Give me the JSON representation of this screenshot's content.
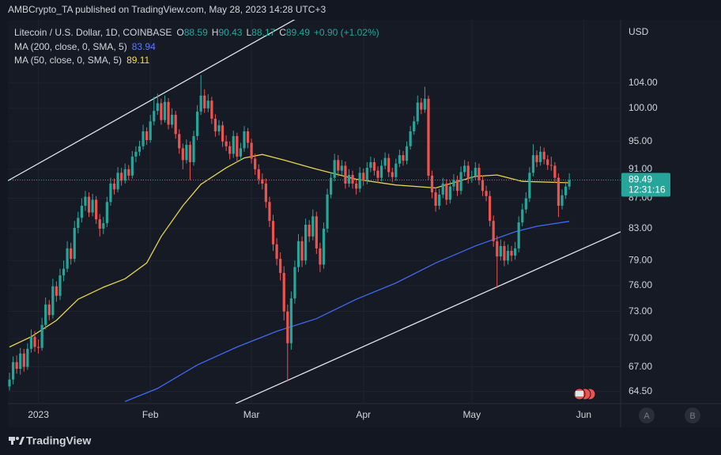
{
  "header": {
    "publisher": "AMBCrypto_TA published on TradingView.com, May 28, 2023 14:28 UTC+3"
  },
  "footer": {
    "brand": "TradingView",
    "buttons": [
      "A",
      "B"
    ]
  },
  "chart_data": {
    "type": "candlestick",
    "legend": {
      "symbol": "Litecoin / U.S. Dollar, 1D, COINBASE",
      "ohlc": [
        {
          "label": "O",
          "value": 88.59
        },
        {
          "label": "H",
          "value": 90.43
        },
        {
          "label": "L",
          "value": 88.17
        },
        {
          "label": "C",
          "value": 89.49
        }
      ],
      "change": "+0.90 (+1.02%)"
    },
    "currency": "USD",
    "countdown": "12:31:16",
    "log_scale": true,
    "grid": true,
    "up_color": "#26a69a",
    "down_color": "#ef5350",
    "ylim": [
      63.3,
      114.7
    ],
    "yticks": [
      {
        "value": 104,
        "label": "104.00"
      },
      {
        "value": 100,
        "label": "100.00"
      },
      {
        "value": 95,
        "label": "95.00"
      },
      {
        "value": 91,
        "label": "91.00"
      },
      {
        "value": 87,
        "label": "87.00"
      },
      {
        "value": 83,
        "label": "83.00"
      },
      {
        "value": 79,
        "label": "79.00"
      },
      {
        "value": 76,
        "label": "76.00"
      },
      {
        "value": 73,
        "label": "73.00"
      },
      {
        "value": 70,
        "label": "70.00"
      },
      {
        "value": 67,
        "label": "67.00"
      },
      {
        "value": 64.5,
        "label": "64.50"
      }
    ],
    "xlim": [
      -0.44,
      169.2
    ],
    "xticks": [
      {
        "value": 8,
        "label": "2023"
      },
      {
        "value": 39,
        "label": "Feb"
      },
      {
        "value": 67,
        "label": "Mar"
      },
      {
        "value": 98,
        "label": "Apr"
      },
      {
        "value": 128,
        "label": "May"
      },
      {
        "value": 159,
        "label": "Jun"
      }
    ],
    "candles": [
      [
        65.0,
        66.4,
        64.6,
        65.7
      ],
      [
        65.7,
        68.1,
        65.2,
        67.5
      ],
      [
        67.5,
        68.2,
        66.3,
        66.8
      ],
      [
        66.8,
        69.0,
        66.2,
        68.4
      ],
      [
        68.4,
        68.9,
        66.5,
        67.0
      ],
      [
        67.0,
        69.5,
        66.7,
        68.9
      ],
      [
        68.9,
        71.0,
        68.5,
        70.2
      ],
      [
        70.2,
        70.8,
        68.6,
        69.1
      ],
      [
        69.1,
        69.9,
        68.4,
        69.0
      ],
      [
        69.0,
        72.3,
        68.7,
        71.5
      ],
      [
        71.5,
        74.6,
        71.0,
        73.8
      ],
      [
        73.8,
        74.3,
        72.0,
        72.6
      ],
      [
        72.6,
        76.8,
        72.2,
        75.9
      ],
      [
        75.9,
        76.5,
        74.1,
        74.8
      ],
      [
        74.8,
        78.0,
        74.3,
        77.2
      ],
      [
        77.2,
        79.0,
        76.5,
        78.0
      ],
      [
        78.0,
        81.4,
        77.6,
        80.5
      ],
      [
        80.5,
        81.2,
        78.5,
        79.2
      ],
      [
        79.2,
        84.0,
        78.8,
        83.1
      ],
      [
        83.1,
        85.2,
        82.4,
        84.4
      ],
      [
        84.4,
        87.0,
        83.8,
        86.0
      ],
      [
        86.0,
        88.0,
        85.3,
        87.2
      ],
      [
        87.2,
        87.8,
        84.5,
        85.1
      ],
      [
        85.1,
        87.6,
        84.6,
        86.8
      ],
      [
        86.8,
        87.3,
        83.6,
        84.2
      ],
      [
        84.2,
        84.9,
        82.0,
        83.0
      ],
      [
        83.0,
        84.5,
        82.3,
        83.7
      ],
      [
        83.7,
        87.2,
        83.2,
        86.5
      ],
      [
        86.5,
        89.8,
        86.0,
        89.0
      ],
      [
        89.0,
        89.7,
        87.5,
        88.2
      ],
      [
        88.2,
        91.3,
        87.8,
        90.5
      ],
      [
        90.5,
        91.2,
        88.7,
        89.4
      ],
      [
        89.4,
        91.8,
        89.0,
        91.0
      ],
      [
        91.0,
        91.6,
        89.5,
        90.1
      ],
      [
        90.1,
        93.6,
        89.7,
        92.8
      ],
      [
        92.8,
        94.3,
        92.0,
        93.5
      ],
      [
        93.5,
        95.1,
        92.9,
        94.3
      ],
      [
        94.3,
        97.5,
        93.8,
        96.5
      ],
      [
        96.5,
        97.1,
        94.5,
        95.2
      ],
      [
        95.2,
        99.0,
        94.8,
        98.0
      ],
      [
        98.0,
        101.8,
        97.4,
        99.6
      ],
      [
        99.6,
        102.3,
        99.0,
        100.8
      ],
      [
        100.8,
        101.5,
        97.5,
        98.2
      ],
      [
        98.2,
        102.0,
        97.8,
        101.0
      ],
      [
        101.0,
        101.6,
        96.8,
        97.5
      ],
      [
        97.5,
        100.0,
        97.0,
        99.0
      ],
      [
        99.0,
        99.6,
        95.4,
        96.1
      ],
      [
        96.1,
        96.8,
        93.2,
        94.0
      ],
      [
        94.0,
        94.7,
        91.0,
        92.3
      ],
      [
        92.3,
        95.3,
        91.8,
        94.5
      ],
      [
        94.5,
        95.0,
        89.5,
        92.0
      ],
      [
        92.0,
        96.6,
        91.5,
        95.8
      ],
      [
        95.8,
        100.5,
        95.2,
        99.5
      ],
      [
        99.5,
        105.3,
        99.0,
        102.0
      ],
      [
        102.0,
        103.0,
        99.3,
        100.0
      ],
      [
        100.0,
        102.2,
        99.4,
        101.2
      ],
      [
        101.2,
        101.8,
        97.6,
        98.4
      ],
      [
        98.4,
        99.1,
        95.7,
        96.5
      ],
      [
        96.5,
        98.2,
        95.9,
        97.4
      ],
      [
        97.4,
        98.0,
        94.2,
        95.0
      ],
      [
        95.0,
        95.9,
        93.6,
        94.3
      ],
      [
        94.3,
        95.0,
        92.4,
        93.2
      ],
      [
        93.2,
        96.6,
        92.6,
        95.8
      ],
      [
        95.8,
        96.3,
        92.0,
        92.8
      ],
      [
        92.8,
        94.8,
        92.2,
        94.0
      ],
      [
        94.0,
        97.3,
        93.5,
        96.5
      ],
      [
        96.5,
        97.0,
        94.0,
        94.8
      ],
      [
        94.8,
        95.4,
        91.8,
        92.5
      ],
      [
        92.5,
        93.2,
        90.2,
        91.0
      ],
      [
        91.0,
        91.7,
        88.9,
        89.6
      ],
      [
        89.6,
        90.4,
        88.2,
        89.0
      ],
      [
        89.0,
        89.7,
        85.7,
        86.5
      ],
      [
        86.5,
        87.2,
        83.2,
        84.0
      ],
      [
        84.0,
        84.8,
        80.2,
        81.0
      ],
      [
        81.0,
        81.8,
        78.4,
        79.2
      ],
      [
        79.2,
        80.0,
        76.6,
        77.5
      ],
      [
        77.5,
        78.3,
        72.0,
        73.0
      ],
      [
        73.0,
        73.8,
        65.5,
        69.5
      ],
      [
        69.5,
        75.3,
        68.8,
        74.5
      ],
      [
        74.5,
        79.0,
        73.9,
        78.2
      ],
      [
        78.2,
        82.3,
        77.6,
        81.4
      ],
      [
        81.4,
        82.0,
        78.2,
        79.0
      ],
      [
        79.0,
        84.3,
        78.5,
        83.5
      ],
      [
        83.5,
        84.1,
        81.3,
        82.0
      ],
      [
        82.0,
        85.5,
        81.5,
        84.6
      ],
      [
        84.6,
        85.2,
        79.8,
        80.5
      ],
      [
        80.5,
        81.2,
        77.6,
        78.5
      ],
      [
        78.5,
        83.8,
        78.0,
        83.0
      ],
      [
        83.0,
        88.3,
        82.5,
        87.5
      ],
      [
        87.5,
        90.6,
        87.0,
        89.8
      ],
      [
        89.8,
        93.2,
        89.3,
        92.3
      ],
      [
        92.3,
        93.0,
        90.0,
        90.8
      ],
      [
        90.8,
        92.3,
        90.2,
        91.5
      ],
      [
        91.5,
        92.1,
        88.3,
        89.0
      ],
      [
        89.0,
        91.0,
        88.5,
        90.2
      ],
      [
        90.2,
        90.8,
        88.3,
        89.0
      ],
      [
        89.0,
        89.6,
        87.5,
        88.3
      ],
      [
        88.3,
        91.3,
        87.8,
        90.5
      ],
      [
        90.5,
        91.1,
        88.7,
        89.4
      ],
      [
        89.4,
        92.0,
        88.9,
        91.2
      ],
      [
        91.2,
        92.8,
        90.6,
        92.0
      ],
      [
        92.0,
        92.6,
        90.1,
        90.8
      ],
      [
        90.8,
        91.4,
        89.1,
        89.8
      ],
      [
        89.8,
        92.3,
        89.3,
        91.5
      ],
      [
        91.5,
        93.4,
        91.0,
        92.6
      ],
      [
        92.6,
        93.2,
        89.9,
        90.6
      ],
      [
        90.6,
        91.2,
        89.2,
        89.9
      ],
      [
        89.9,
        92.5,
        89.4,
        91.8
      ],
      [
        91.8,
        93.8,
        91.3,
        93.0
      ],
      [
        93.0,
        93.6,
        91.5,
        92.2
      ],
      [
        92.2,
        95.0,
        91.7,
        94.3
      ],
      [
        94.3,
        97.3,
        93.8,
        96.5
      ],
      [
        96.5,
        98.8,
        96.0,
        98.0
      ],
      [
        98.0,
        102.0,
        97.5,
        100.9
      ],
      [
        100.9,
        101.6,
        99.1,
        99.8
      ],
      [
        99.8,
        103.4,
        99.3,
        101.5
      ],
      [
        101.5,
        102.0,
        89.5,
        90.1
      ],
      [
        90.1,
        90.8,
        87.0,
        87.8
      ],
      [
        87.8,
        88.5,
        85.2,
        86.0
      ],
      [
        86.0,
        88.3,
        85.5,
        87.5
      ],
      [
        87.5,
        89.8,
        87.0,
        89.0
      ],
      [
        89.0,
        89.6,
        86.1,
        86.8
      ],
      [
        86.8,
        89.4,
        86.3,
        88.6
      ],
      [
        88.6,
        90.3,
        88.0,
        89.5
      ],
      [
        89.5,
        90.1,
        87.3,
        88.0
      ],
      [
        88.0,
        91.4,
        87.5,
        90.6
      ],
      [
        90.6,
        92.3,
        90.0,
        91.5
      ],
      [
        91.5,
        92.1,
        89.0,
        89.7
      ],
      [
        89.7,
        90.8,
        89.1,
        90.0
      ],
      [
        90.0,
        92.0,
        89.5,
        91.2
      ],
      [
        91.2,
        91.8,
        88.8,
        89.5
      ],
      [
        89.5,
        90.1,
        87.3,
        88.0
      ],
      [
        88.0,
        88.7,
        86.6,
        87.3
      ],
      [
        87.3,
        88.0,
        83.3,
        84.0
      ],
      [
        84.0,
        84.7,
        80.7,
        81.4
      ],
      [
        81.4,
        82.1,
        75.7,
        79.5
      ],
      [
        79.5,
        81.6,
        79.0,
        80.8
      ],
      [
        80.8,
        81.4,
        78.3,
        79.0
      ],
      [
        79.0,
        81.0,
        78.5,
        80.2
      ],
      [
        80.2,
        80.8,
        78.9,
        79.6
      ],
      [
        79.6,
        81.3,
        79.1,
        80.5
      ],
      [
        80.5,
        84.6,
        80.0,
        83.8
      ],
      [
        83.8,
        86.3,
        83.3,
        85.5
      ],
      [
        85.5,
        87.8,
        85.0,
        87.0
      ],
      [
        87.0,
        91.3,
        86.5,
        90.5
      ],
      [
        90.5,
        94.6,
        90.0,
        93.0
      ],
      [
        93.0,
        93.7,
        91.3,
        92.0
      ],
      [
        92.0,
        94.3,
        91.5,
        93.5
      ],
      [
        93.5,
        94.1,
        91.7,
        92.4
      ],
      [
        92.4,
        93.0,
        90.9,
        91.6
      ],
      [
        91.6,
        92.8,
        90.8,
        91.5
      ],
      [
        91.5,
        92.0,
        89.1,
        89.8
      ],
      [
        89.8,
        90.4,
        84.5,
        86.0
      ],
      [
        86.0,
        88.2,
        85.5,
        87.4
      ],
      [
        87.4,
        89.3,
        86.9,
        88.59
      ],
      [
        88.59,
        90.43,
        88.17,
        89.49
      ]
    ],
    "series": [
      {
        "name": "MA (200, close, 0, SMA, 5)",
        "color": "#3f6af0",
        "last": 83.94,
        "x": [
          32,
          41,
          52,
          63,
          74,
          85,
          96,
          107,
          118,
          129,
          140,
          146,
          155
        ],
        "values": [
          63.5,
          64.8,
          67.2,
          69.1,
          70.8,
          72.2,
          74.4,
          76.3,
          78.7,
          80.8,
          82.6,
          83.3,
          83.94
        ]
      },
      {
        "name": "MA (50, close, 0, SMA, 5)",
        "color": "#e8d44d",
        "last": 89.11,
        "x": [
          0,
          6,
          13,
          19,
          26,
          32,
          38,
          42,
          48,
          53,
          60,
          65,
          70,
          76,
          85,
          96,
          107,
          118,
          129,
          135,
          142,
          155
        ],
        "values": [
          69.1,
          70.2,
          72.0,
          74.4,
          75.8,
          76.8,
          78.7,
          82.0,
          86.0,
          88.9,
          91.2,
          92.6,
          93.1,
          92.3,
          91.0,
          89.6,
          88.8,
          88.4,
          90.0,
          90.2,
          89.3,
          89.11
        ]
      }
    ],
    "trendlines": [
      {
        "color": "#e0e3eb",
        "x": [
          -0.44,
          81.6
        ],
        "values": [
          89.4,
          115.7
        ]
      },
      {
        "color": "#e0e3eb",
        "x": [
          62.6,
          169.2
        ],
        "values": [
          63.3,
          82.6
        ]
      }
    ]
  }
}
